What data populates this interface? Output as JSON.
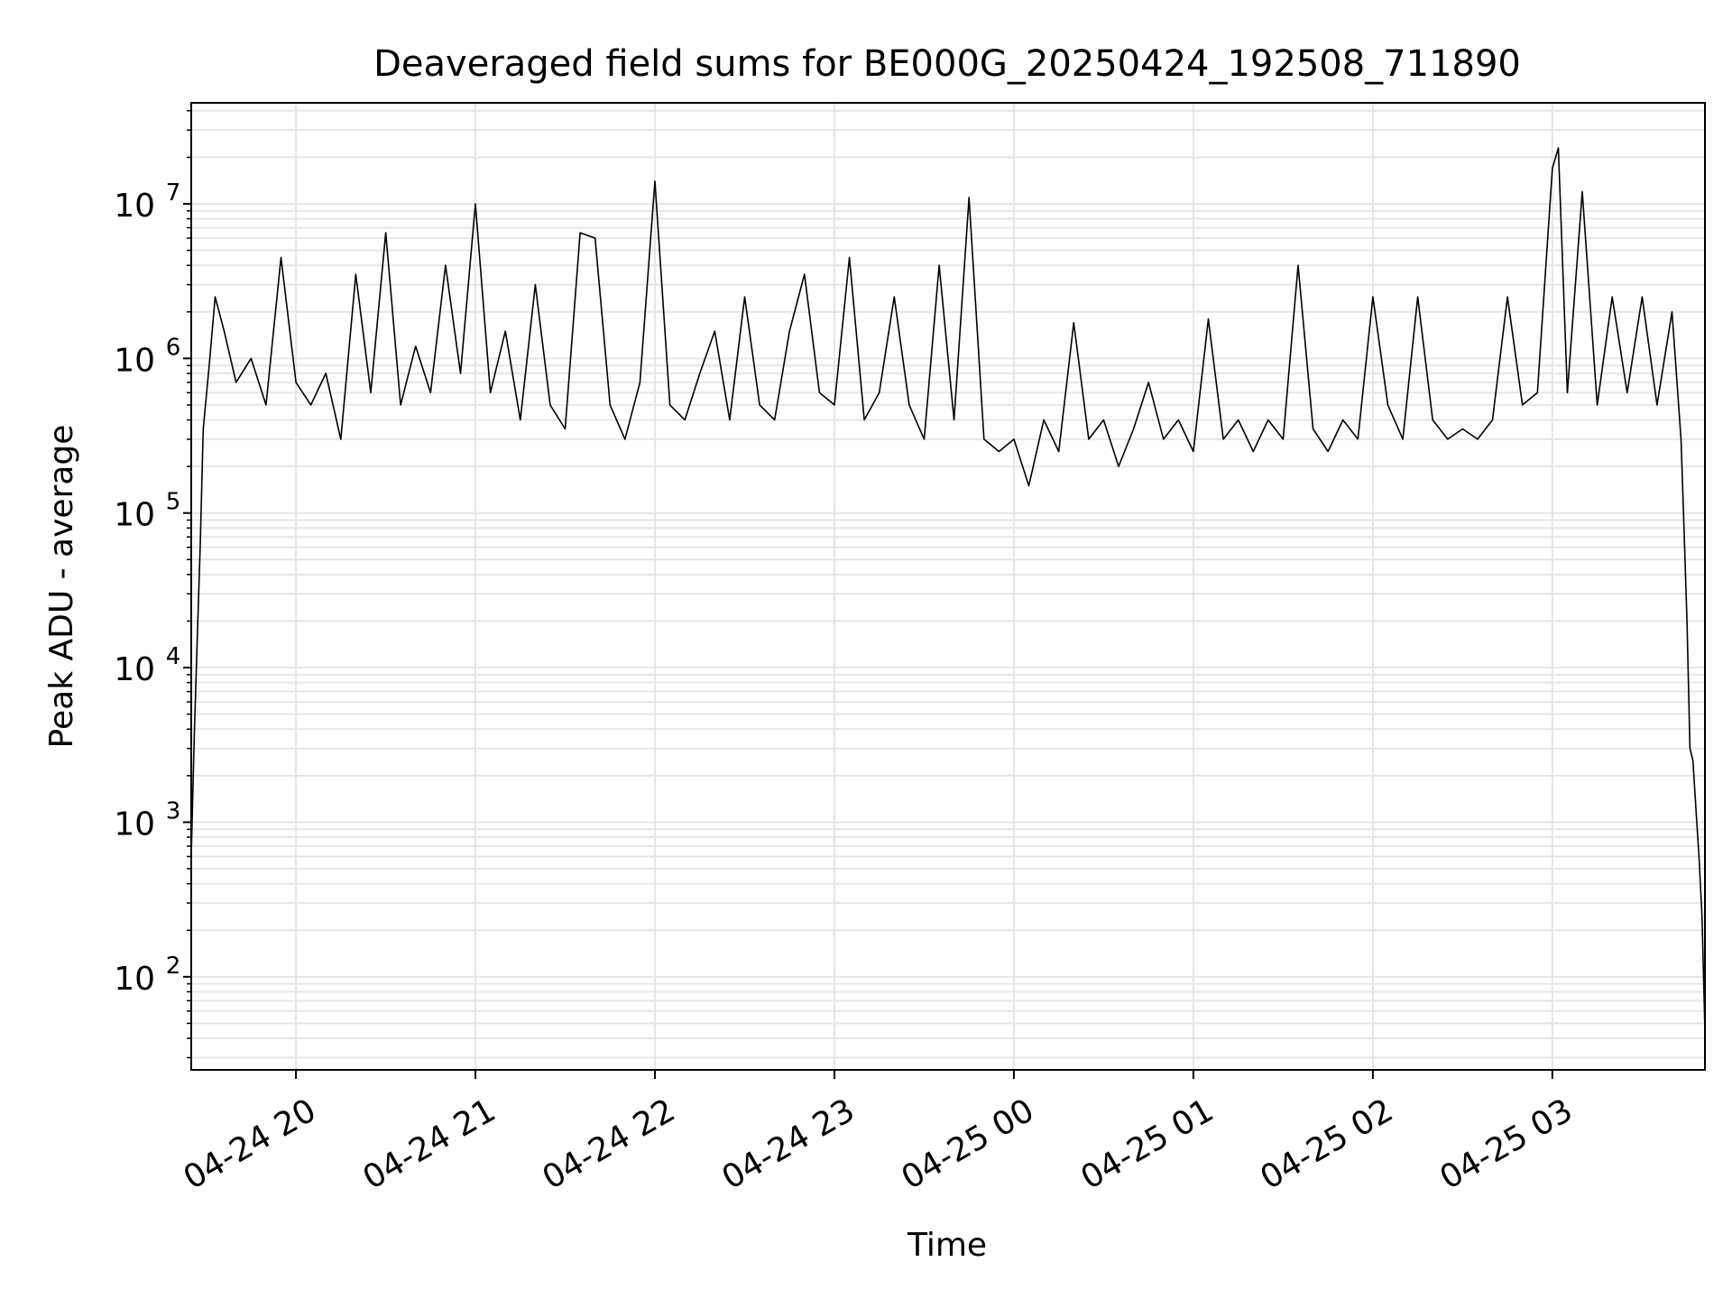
{
  "chart_data": {
    "type": "line",
    "title": "Deaveraged field sums for BE000G_20250424_192508_711890",
    "xlabel": "Time",
    "ylabel": "Peak ADU - average",
    "yscale": "log",
    "ylim": [
      25,
      45000000
    ],
    "xlim": [
      "2025-04-24 19:25",
      "2025-04-25 03:51"
    ],
    "grid": true,
    "line_color": "#000000",
    "x_ticks": [
      {
        "value": "2025-04-24 20:00",
        "label": "04-24 20"
      },
      {
        "value": "2025-04-24 21:00",
        "label": "04-24 21"
      },
      {
        "value": "2025-04-24 22:00",
        "label": "04-24 22"
      },
      {
        "value": "2025-04-24 23:00",
        "label": "04-24 23"
      },
      {
        "value": "2025-04-25 00:00",
        "label": "04-25 00"
      },
      {
        "value": "2025-04-25 01:00",
        "label": "04-25 01"
      },
      {
        "value": "2025-04-25 02:00",
        "label": "04-25 02"
      },
      {
        "value": "2025-04-25 03:00",
        "label": "04-25 03"
      }
    ],
    "y_ticks": [
      {
        "value": 100,
        "base": "10",
        "exp": "2"
      },
      {
        "value": 1000,
        "base": "10",
        "exp": "3"
      },
      {
        "value": 10000,
        "base": "10",
        "exp": "4"
      },
      {
        "value": 100000,
        "base": "10",
        "exp": "5"
      },
      {
        "value": 1000000,
        "base": "10",
        "exp": "6"
      },
      {
        "value": 10000000,
        "base": "10",
        "exp": "7"
      }
    ],
    "series": [
      {
        "points": [
          [
            "2025-04-24 19:25",
            600
          ],
          [
            "2025-04-24 19:26",
            3500
          ],
          [
            "2025-04-24 19:27",
            15000
          ],
          [
            "2025-04-24 19:28",
            60000
          ],
          [
            "2025-04-24 19:29",
            350000
          ],
          [
            "2025-04-24 19:31",
            900000
          ],
          [
            "2025-04-24 19:33",
            2500000
          ],
          [
            "2025-04-24 19:36",
            1500000
          ],
          [
            "2025-04-24 19:40",
            700000
          ],
          [
            "2025-04-24 19:45",
            1000000
          ],
          [
            "2025-04-24 19:50",
            500000
          ],
          [
            "2025-04-24 19:55",
            4500000
          ],
          [
            "2025-04-24 20:00",
            700000
          ],
          [
            "2025-04-24 20:05",
            500000
          ],
          [
            "2025-04-24 20:10",
            800000
          ],
          [
            "2025-04-24 20:15",
            300000
          ],
          [
            "2025-04-24 20:20",
            3500000
          ],
          [
            "2025-04-24 20:25",
            600000
          ],
          [
            "2025-04-24 20:30",
            6500000
          ],
          [
            "2025-04-24 20:35",
            500000
          ],
          [
            "2025-04-24 20:40",
            1200000
          ],
          [
            "2025-04-24 20:45",
            600000
          ],
          [
            "2025-04-24 20:50",
            4000000
          ],
          [
            "2025-04-24 20:55",
            800000
          ],
          [
            "2025-04-24 21:00",
            10000000
          ],
          [
            "2025-04-24 21:05",
            600000
          ],
          [
            "2025-04-24 21:10",
            1500000
          ],
          [
            "2025-04-24 21:15",
            400000
          ],
          [
            "2025-04-24 21:20",
            3000000
          ],
          [
            "2025-04-24 21:25",
            500000
          ],
          [
            "2025-04-24 21:30",
            350000
          ],
          [
            "2025-04-24 21:35",
            6500000
          ],
          [
            "2025-04-24 21:40",
            6000000
          ],
          [
            "2025-04-24 21:45",
            500000
          ],
          [
            "2025-04-24 21:50",
            300000
          ],
          [
            "2025-04-24 21:55",
            700000
          ],
          [
            "2025-04-24 22:00",
            14000000
          ],
          [
            "2025-04-24 22:05",
            500000
          ],
          [
            "2025-04-24 22:10",
            400000
          ],
          [
            "2025-04-24 22:15",
            800000
          ],
          [
            "2025-04-24 22:20",
            1500000
          ],
          [
            "2025-04-24 22:25",
            400000
          ],
          [
            "2025-04-24 22:30",
            2500000
          ],
          [
            "2025-04-24 22:35",
            500000
          ],
          [
            "2025-04-24 22:40",
            400000
          ],
          [
            "2025-04-24 22:45",
            1500000
          ],
          [
            "2025-04-24 22:50",
            3500000
          ],
          [
            "2025-04-24 22:55",
            600000
          ],
          [
            "2025-04-24 23:00",
            500000
          ],
          [
            "2025-04-24 23:05",
            4500000
          ],
          [
            "2025-04-24 23:10",
            400000
          ],
          [
            "2025-04-24 23:15",
            600000
          ],
          [
            "2025-04-24 23:20",
            2500000
          ],
          [
            "2025-04-24 23:25",
            500000
          ],
          [
            "2025-04-24 23:30",
            300000
          ],
          [
            "2025-04-24 23:35",
            4000000
          ],
          [
            "2025-04-24 23:40",
            400000
          ],
          [
            "2025-04-24 23:45",
            11000000
          ],
          [
            "2025-04-24 23:50",
            300000
          ],
          [
            "2025-04-24 23:55",
            250000
          ],
          [
            "2025-04-25 00:00",
            300000
          ],
          [
            "2025-04-25 00:05",
            150000
          ],
          [
            "2025-04-25 00:10",
            400000
          ],
          [
            "2025-04-25 00:15",
            250000
          ],
          [
            "2025-04-25 00:20",
            1700000
          ],
          [
            "2025-04-25 00:25",
            300000
          ],
          [
            "2025-04-25 00:30",
            400000
          ],
          [
            "2025-04-25 00:35",
            200000
          ],
          [
            "2025-04-25 00:40",
            350000
          ],
          [
            "2025-04-25 00:45",
            700000
          ],
          [
            "2025-04-25 00:50",
            300000
          ],
          [
            "2025-04-25 00:55",
            400000
          ],
          [
            "2025-04-25 01:00",
            250000
          ],
          [
            "2025-04-25 01:05",
            1800000
          ],
          [
            "2025-04-25 01:10",
            300000
          ],
          [
            "2025-04-25 01:15",
            400000
          ],
          [
            "2025-04-25 01:20",
            250000
          ],
          [
            "2025-04-25 01:25",
            400000
          ],
          [
            "2025-04-25 01:30",
            300000
          ],
          [
            "2025-04-25 01:35",
            4000000
          ],
          [
            "2025-04-25 01:40",
            350000
          ],
          [
            "2025-04-25 01:45",
            250000
          ],
          [
            "2025-04-25 01:50",
            400000
          ],
          [
            "2025-04-25 01:55",
            300000
          ],
          [
            "2025-04-25 02:00",
            2500000
          ],
          [
            "2025-04-25 02:05",
            500000
          ],
          [
            "2025-04-25 02:10",
            300000
          ],
          [
            "2025-04-25 02:15",
            2500000
          ],
          [
            "2025-04-25 02:20",
            400000
          ],
          [
            "2025-04-25 02:25",
            300000
          ],
          [
            "2025-04-25 02:30",
            350000
          ],
          [
            "2025-04-25 02:35",
            300000
          ],
          [
            "2025-04-25 02:40",
            400000
          ],
          [
            "2025-04-25 02:45",
            2500000
          ],
          [
            "2025-04-25 02:50",
            500000
          ],
          [
            "2025-04-25 02:55",
            600000
          ],
          [
            "2025-04-25 03:00",
            17000000
          ],
          [
            "2025-04-25 03:02",
            23000000
          ],
          [
            "2025-04-25 03:05",
            600000
          ],
          [
            "2025-04-25 03:10",
            12000000
          ],
          [
            "2025-04-25 03:15",
            500000
          ],
          [
            "2025-04-25 03:20",
            2500000
          ],
          [
            "2025-04-25 03:25",
            600000
          ],
          [
            "2025-04-25 03:30",
            2500000
          ],
          [
            "2025-04-25 03:35",
            500000
          ],
          [
            "2025-04-25 03:40",
            2000000
          ],
          [
            "2025-04-25 03:43",
            300000
          ],
          [
            "2025-04-25 03:44",
            80000
          ],
          [
            "2025-04-25 03:45",
            20000
          ],
          [
            "2025-04-25 03:46",
            3000
          ],
          [
            "2025-04-25 03:47",
            2500
          ],
          [
            "2025-04-25 03:48",
            1200
          ],
          [
            "2025-04-25 03:49",
            600
          ],
          [
            "2025-04-25 03:50",
            250
          ],
          [
            "2025-04-25 03:51",
            45
          ]
        ]
      }
    ]
  }
}
